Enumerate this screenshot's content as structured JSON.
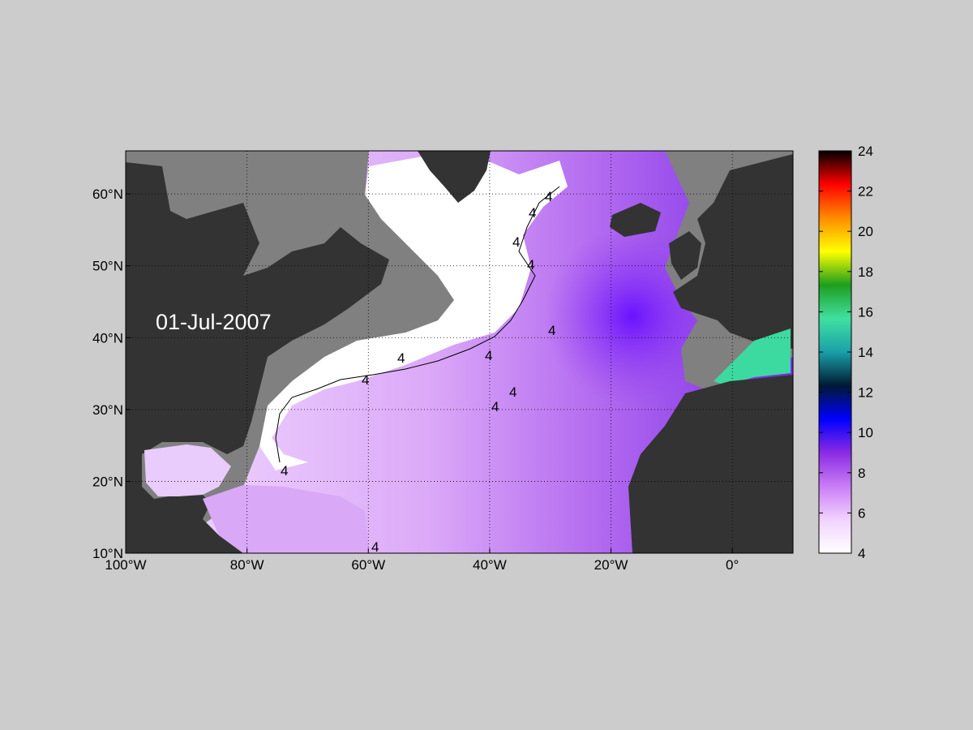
{
  "map": {
    "date_label": "01-Jul-2007",
    "lon_range": [
      -100,
      10
    ],
    "lat_range": [
      10,
      66
    ],
    "x_ticks": [
      {
        "value": -100,
        "label": "100°W"
      },
      {
        "value": -80,
        "label": "80°W"
      },
      {
        "value": -60,
        "label": "60°W"
      },
      {
        "value": -40,
        "label": "40°W"
      },
      {
        "value": -20,
        "label": "20°W"
      },
      {
        "value": 0,
        "label": "0°"
      }
    ],
    "y_ticks": [
      {
        "value": 10,
        "label": "10°N"
      },
      {
        "value": 20,
        "label": "20°N"
      },
      {
        "value": 30,
        "label": "30°N"
      },
      {
        "value": 40,
        "label": "40°N"
      },
      {
        "value": 50,
        "label": "50°N"
      },
      {
        "value": 60,
        "label": "60°N"
      }
    ],
    "grid": "dotted",
    "contour_label": "4",
    "colors": {
      "land": "#333333",
      "shelf": "#808080",
      "no_data": "#ffffff",
      "figure_bg": "#cccccc"
    }
  },
  "colorbar": {
    "min": 4,
    "max": 24,
    "ticks": [
      "4",
      "6",
      "8",
      "10",
      "12",
      "14",
      "16",
      "18",
      "20",
      "22",
      "24"
    ],
    "colors": [
      "#ffffff",
      "#f1d3ff",
      "#c97cf5",
      "#8a2be2",
      "#0000ff",
      "#001a33",
      "#1aa0a8",
      "#40e0a0",
      "#1e9e1e",
      "#ffff00",
      "#ff8c00",
      "#ff0000",
      "#000000"
    ]
  }
}
